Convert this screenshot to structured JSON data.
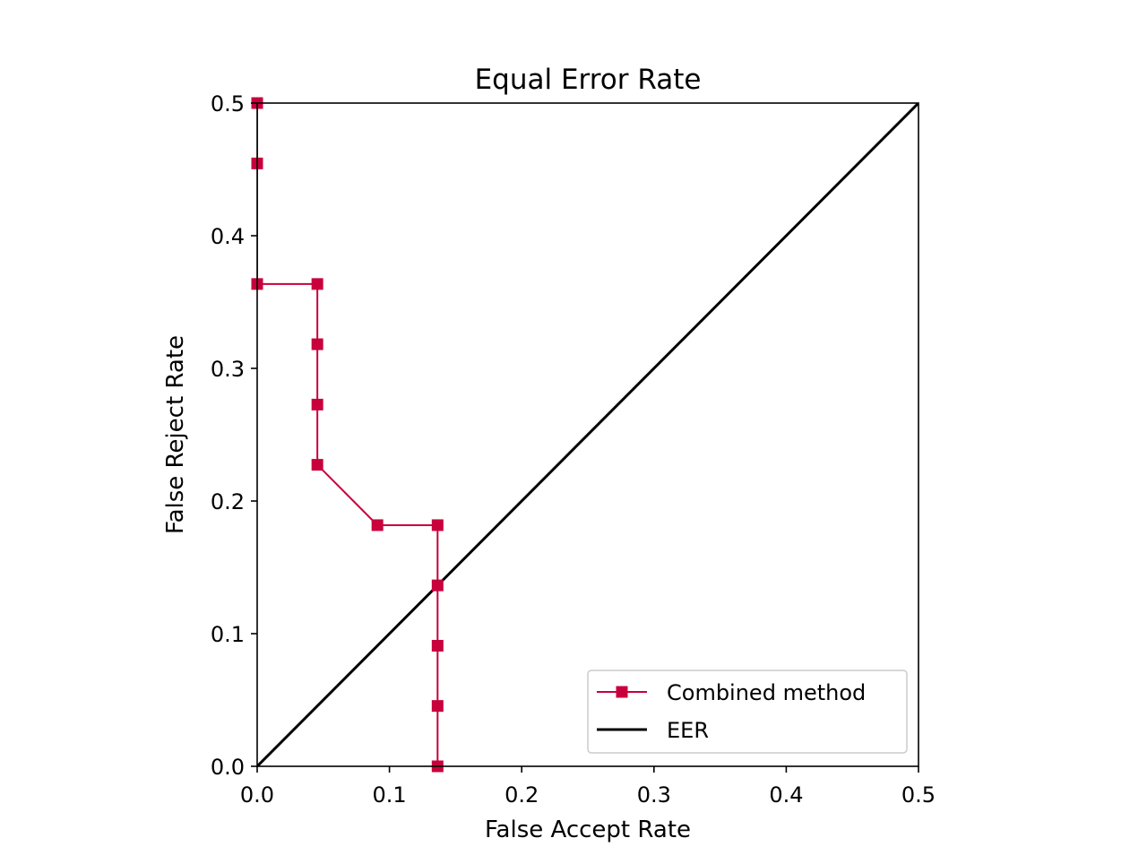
{
  "chart_data": {
    "type": "line",
    "title": "Equal Error Rate",
    "xlabel": "False Accept Rate",
    "ylabel": "False Reject Rate",
    "xlim": [
      0,
      0.5
    ],
    "ylim": [
      0,
      0.5
    ],
    "xticks": [
      0.0,
      0.1,
      0.2,
      0.3,
      0.4,
      0.5
    ],
    "yticks": [
      0.0,
      0.1,
      0.2,
      0.3,
      0.4,
      0.5
    ],
    "xtick_labels": [
      "0.0",
      "0.1",
      "0.2",
      "0.3",
      "0.4",
      "0.5"
    ],
    "ytick_labels": [
      "0.0",
      "0.1",
      "0.2",
      "0.3",
      "0.4",
      "0.5"
    ],
    "grid": false,
    "legend_position": "lower-right",
    "series": [
      {
        "name": "Combined method",
        "color": "#c8003c",
        "marker": "square",
        "x": [
          0.0,
          0.0,
          0.0,
          0.0455,
          0.0455,
          0.0455,
          0.0455,
          0.0909,
          0.1364,
          0.1364,
          0.1364,
          0.1364,
          0.1364
        ],
        "y": [
          0.5,
          0.4545,
          0.3636,
          0.3636,
          0.3182,
          0.2727,
          0.2273,
          0.1818,
          0.1818,
          0.1364,
          0.0909,
          0.0455,
          0.0
        ]
      },
      {
        "name": "EER",
        "color": "#000000",
        "marker": "none",
        "x": [
          0.0,
          0.5
        ],
        "y": [
          0.0,
          0.5
        ]
      }
    ]
  }
}
